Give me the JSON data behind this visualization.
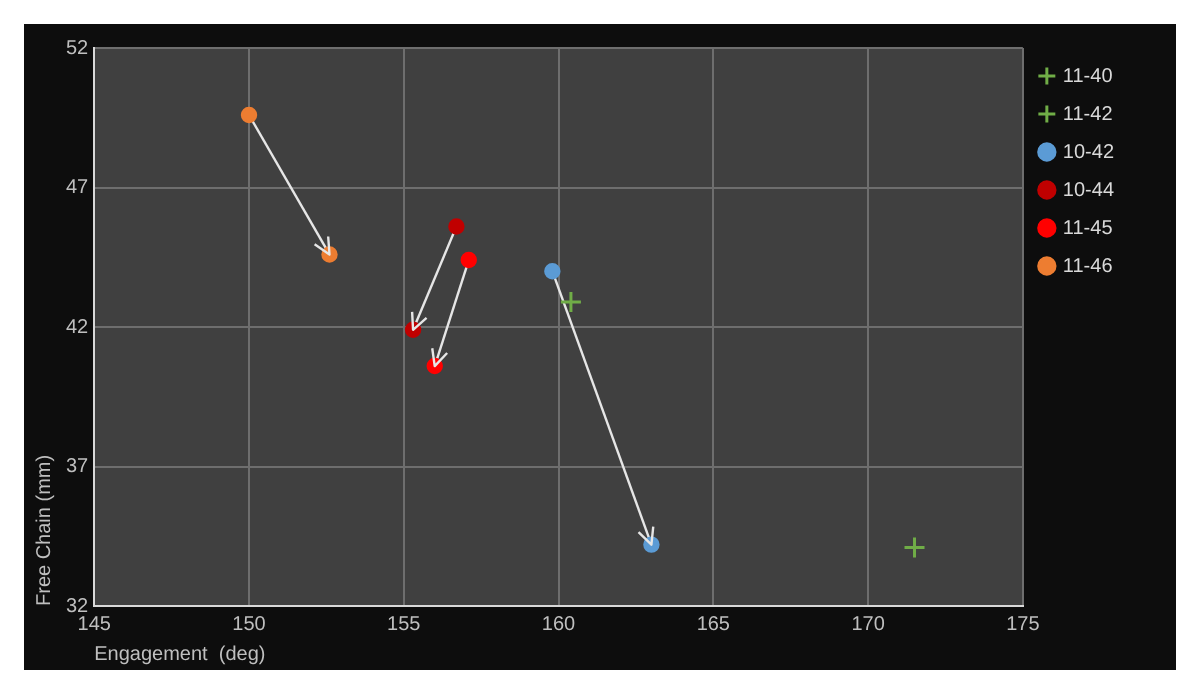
{
  "chart_data": {
    "type": "scatter",
    "xlabel": "Engagement  (deg)",
    "ylabel": "Free Chain (mm)",
    "xlim": [
      145,
      175
    ],
    "xticks": [
      145,
      150,
      155,
      160,
      165,
      170,
      175
    ],
    "ylim": [
      32,
      52
    ],
    "yticks": [
      32,
      37,
      42,
      47,
      52
    ],
    "grid": true,
    "legend": "top right",
    "series": [
      {
        "name": "11-40",
        "marker": "cross",
        "color": "#70ad47",
        "x": [
          171.5
        ],
        "values": [
          34.1
        ]
      },
      {
        "name": "11-42",
        "marker": "cross",
        "color": "#70ad47",
        "x": [
          160.4
        ],
        "values": [
          42.9
        ]
      },
      {
        "name": "10-42",
        "type": "line",
        "marker": "circle",
        "color": "#5b9bd5",
        "x": [
          159.8,
          163.0
        ],
        "values": [
          44.0,
          34.2
        ]
      },
      {
        "name": "10-44",
        "type": "line",
        "marker": "circle",
        "color": "#c00000",
        "x": [
          156.7,
          155.3
        ],
        "values": [
          45.6,
          41.9
        ]
      },
      {
        "name": "11-45",
        "type": "line",
        "marker": "circle",
        "color": "#ff0000",
        "x": [
          157.1,
          156.0
        ],
        "values": [
          44.4,
          40.6
        ]
      },
      {
        "name": "11-46",
        "type": "line",
        "marker": "circle",
        "color": "#ed7d31",
        "x": [
          150.0,
          152.6
        ],
        "values": [
          49.6,
          44.6
        ]
      }
    ]
  }
}
